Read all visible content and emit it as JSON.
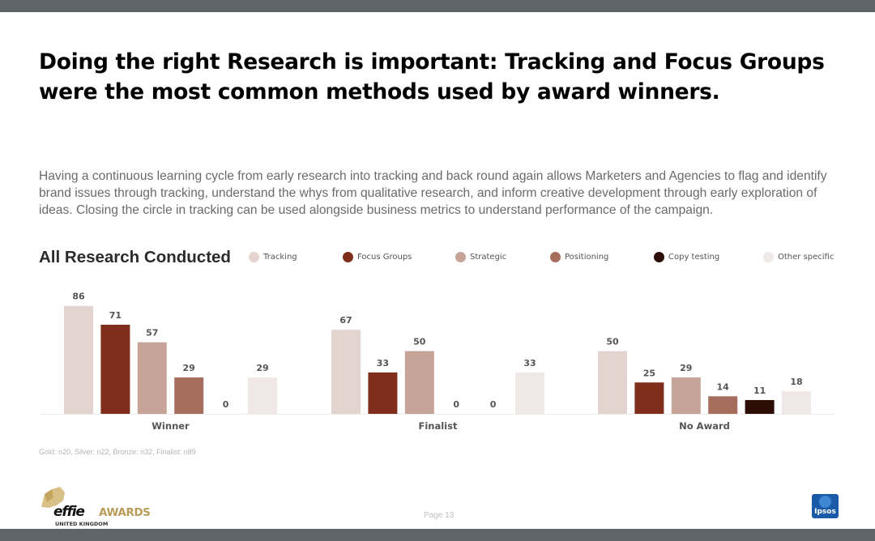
{
  "header": {
    "title": "Doing the right Research is important: Tracking and Focus Groups were the most common methods used by award winners."
  },
  "description": "Having a continuous learning cycle from early research into tracking and back round again allows Marketers and Agencies to flag and identify brand issues through tracking, understand the whys from qualitative research, and inform creative development through early exploration of ideas.  Closing the circle in tracking can be used alongside business metrics to understand performance of the campaign.",
  "chart_heading": "All Research Conducted",
  "colors": {
    "Tracking": "#e3d4d0",
    "Focus Groups": "#7e2e1b",
    "Strategic": "#c6a598",
    "Positioning": "#a86e5d",
    "Copy testing": "#2d0e07",
    "Other specific": "#f0e8e6"
  },
  "chart_data": {
    "type": "bar",
    "title": "All Research Conducted",
    "categories": [
      "Winner",
      "Finalist",
      "No Award"
    ],
    "series": [
      {
        "name": "Tracking",
        "values": [
          86,
          67,
          50
        ]
      },
      {
        "name": "Focus Groups",
        "values": [
          71,
          33,
          25
        ]
      },
      {
        "name": "Strategic",
        "values": [
          57,
          50,
          29
        ]
      },
      {
        "name": "Positioning",
        "values": [
          29,
          0,
          14
        ]
      },
      {
        "name": "Copy testing",
        "values": [
          0,
          0,
          11
        ]
      },
      {
        "name": "Other specific",
        "values": [
          29,
          33,
          18
        ]
      }
    ],
    "ylim": [
      0,
      100
    ],
    "grid": false,
    "legend_position": "top",
    "data_labels": true
  },
  "footnote": "Gold: n20, Silver: n22, Bronze: n32, Finalist: n89",
  "page_label": "Page 13",
  "logos": {
    "effie_word": "effie",
    "effie_awards": "AWARDS",
    "effie_region": "UNITED KINGDOM",
    "ipsos": "Ipsos"
  }
}
